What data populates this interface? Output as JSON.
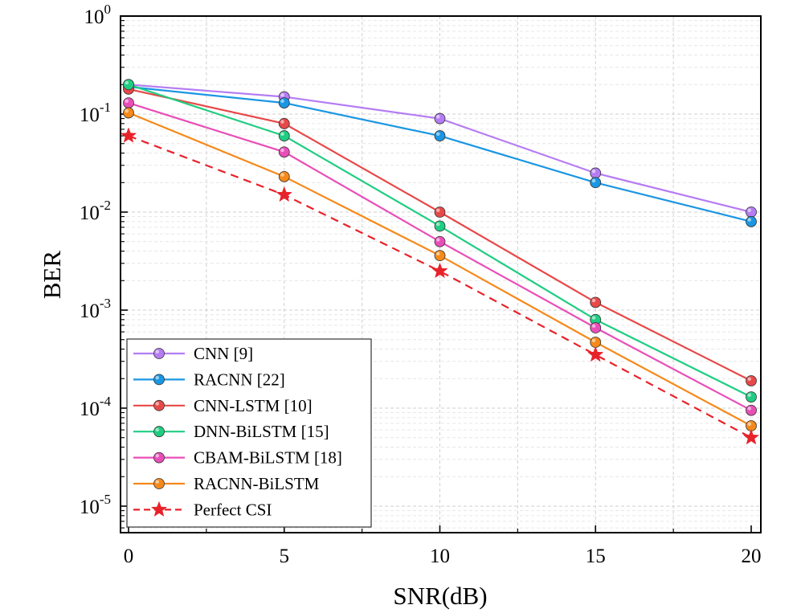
{
  "chart_data": {
    "type": "line",
    "xlabel": "SNR(dB)",
    "ylabel": "BER",
    "yscale": "log",
    "xlim": [
      0,
      20
    ],
    "ylim": [
      5e-06,
      1
    ],
    "grid": true,
    "legend_position": "bottom-left",
    "x_ticks": [
      {
        "value": 0,
        "label": "0"
      },
      {
        "value": 5,
        "label": "5"
      },
      {
        "value": 10,
        "label": "10"
      },
      {
        "value": 15,
        "label": "15"
      },
      {
        "value": 20,
        "label": "20"
      }
    ],
    "y_ticks": [
      {
        "value": 1,
        "base": "10",
        "exp": "0"
      },
      {
        "value": 0.1,
        "base": "10",
        "exp": "-1"
      },
      {
        "value": 0.01,
        "base": "10",
        "exp": "-2"
      },
      {
        "value": 0.001,
        "base": "10",
        "exp": "-3"
      },
      {
        "value": 0.0001,
        "base": "10",
        "exp": "-4"
      },
      {
        "value": 1e-05,
        "base": "10",
        "exp": "-5"
      }
    ],
    "x": [
      0,
      5,
      10,
      15,
      20
    ],
    "series": [
      {
        "name": "CNN [9]",
        "color": "#b57cf3",
        "marker": "circle",
        "dash": false,
        "values": [
          0.2,
          0.15,
          0.09,
          0.025,
          0.01
        ]
      },
      {
        "name": "RACNN [22]",
        "color": "#1a96e3",
        "marker": "circle",
        "dash": false,
        "values": [
          0.19,
          0.13,
          0.06,
          0.02,
          0.008
        ]
      },
      {
        "name": "CNN-LSTM [10]",
        "color": "#e84848",
        "marker": "circle",
        "dash": false,
        "values": [
          0.18,
          0.08,
          0.01,
          0.0012,
          0.00019
        ]
      },
      {
        "name": "DNN-BiLSTM [15]",
        "color": "#1fcd82",
        "marker": "circle",
        "dash": false,
        "values": [
          0.2,
          0.06,
          0.0072,
          0.0008,
          0.00013
        ]
      },
      {
        "name": "CBAM-BiLSTM [18]",
        "color": "#e94eb8",
        "marker": "circle",
        "dash": false,
        "values": [
          0.13,
          0.041,
          0.005,
          0.00066,
          9.5e-05
        ]
      },
      {
        "name": "RACNN-BiLSTM",
        "color": "#f5891a",
        "marker": "circle",
        "dash": false,
        "values": [
          0.103,
          0.023,
          0.0036,
          0.00047,
          6.6e-05
        ]
      },
      {
        "name": "Perfect CSI",
        "color": "#e8222a",
        "marker": "star",
        "dash": true,
        "values": [
          0.06,
          0.015,
          0.0025,
          0.00035,
          5e-05
        ]
      }
    ]
  }
}
